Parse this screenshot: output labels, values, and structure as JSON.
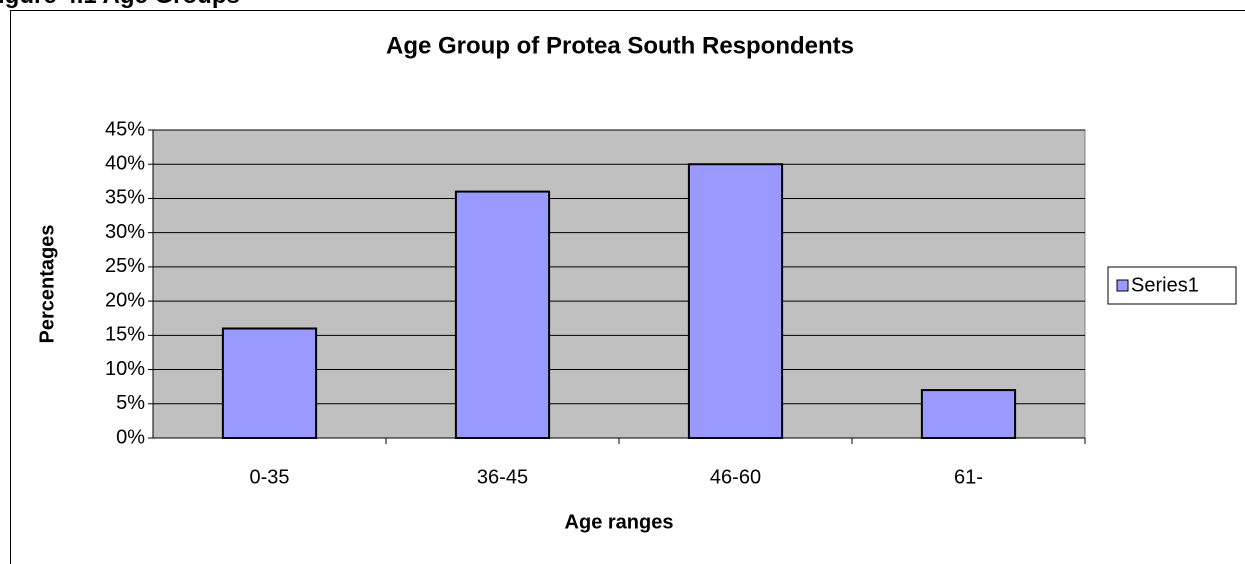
{
  "caption": "igure 4.1     Age Groups",
  "chart_data": {
    "type": "bar",
    "title": "Age Group of Protea South Respondents",
    "x_label": "Age ranges",
    "y_label": "Percentages",
    "categories": [
      "0-35",
      "36-45",
      "46-60",
      "61-"
    ],
    "series": [
      {
        "name": "Series1",
        "color": "#9999ff",
        "values": [
          16,
          36,
          40,
          7
        ]
      }
    ],
    "ylim": [
      0,
      45
    ],
    "yticks": [
      {
        "value": 0,
        "label": "0%"
      },
      {
        "value": 5,
        "label": "5%"
      },
      {
        "value": 10,
        "label": "10%"
      },
      {
        "value": 15,
        "label": "15%"
      },
      {
        "value": 20,
        "label": "20%"
      },
      {
        "value": 25,
        "label": "25%"
      },
      {
        "value": 30,
        "label": "30%"
      },
      {
        "value": 35,
        "label": "35%"
      },
      {
        "value": 40,
        "label": "40%"
      },
      {
        "value": 45,
        "label": "45%"
      }
    ],
    "grid": true,
    "legend": "right",
    "plot_background": "#c0c0c0"
  }
}
